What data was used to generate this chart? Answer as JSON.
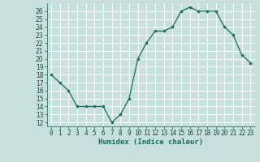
{
  "x": [
    0,
    1,
    2,
    3,
    4,
    5,
    6,
    7,
    8,
    9,
    10,
    11,
    12,
    13,
    14,
    15,
    16,
    17,
    18,
    19,
    20,
    21,
    22,
    23
  ],
  "y": [
    18,
    17,
    16,
    14,
    14,
    14,
    14,
    12,
    13,
    15,
    20,
    22,
    23.5,
    23.5,
    24,
    26,
    26.5,
    26,
    26,
    26,
    24,
    23,
    20.5,
    19.5
  ],
  "line_color": "#1a6b5a",
  "marker_color": "#1a6b5a",
  "bg_color": "#c8dfe0",
  "grid_color": "#ffffff",
  "xlabel": "Humidex (Indice chaleur)",
  "xlabel_fontsize": 6.5,
  "tick_fontsize": 5.5,
  "ylim": [
    11.5,
    27
  ],
  "xlim": [
    -0.5,
    23.5
  ],
  "yticks": [
    12,
    13,
    14,
    15,
    16,
    17,
    18,
    19,
    20,
    21,
    22,
    23,
    24,
    25,
    26
  ],
  "xticks": [
    0,
    1,
    2,
    3,
    4,
    5,
    6,
    7,
    8,
    9,
    10,
    11,
    12,
    13,
    14,
    15,
    16,
    17,
    18,
    19,
    20,
    21,
    22,
    23
  ],
  "xtick_labels": [
    "0",
    "1",
    "2",
    "3",
    "4",
    "5",
    "6",
    "7",
    "8",
    "9",
    "10",
    "11",
    "12",
    "13",
    "14",
    "15",
    "16",
    "17",
    "18",
    "19",
    "20",
    "21",
    "22",
    "23"
  ]
}
